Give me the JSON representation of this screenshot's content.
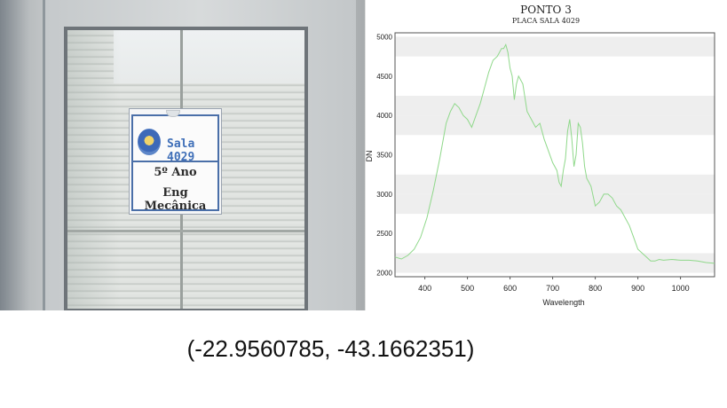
{
  "photo": {
    "sign_title": "Sala 4029",
    "sign_line1": "5º Ano",
    "sign_line2": "Eng Mecânica"
  },
  "chart_data": {
    "type": "line",
    "title": "PONTO 3",
    "subtitle": "PLACA SALA 4029",
    "xlabel": "Wavelength",
    "ylabel": "DN",
    "xlim": [
      330,
      1080
    ],
    "ylim": [
      1950,
      5050
    ],
    "xticks": [
      400,
      500,
      600,
      700,
      800,
      900,
      1000
    ],
    "yticks": [
      2000,
      2500,
      3000,
      3500,
      4000,
      4500,
      5000
    ],
    "grid": "horizontal bands",
    "colors": {
      "line": "#8fd88a",
      "band": "#eeeeee",
      "axis": "#555555"
    },
    "series": [
      {
        "x": [
          330,
          345,
          360,
          375,
          390,
          405,
          420,
          435,
          450,
          460,
          470,
          480,
          490,
          500,
          510,
          520,
          530,
          540,
          550,
          560,
          570,
          580,
          585,
          590,
          595,
          600,
          605,
          610,
          615,
          620,
          625,
          630,
          640,
          650,
          660,
          670,
          680,
          690,
          700,
          710,
          715,
          720,
          725,
          730,
          735,
          740,
          745,
          750,
          755,
          760,
          765,
          770,
          775,
          780,
          785,
          790,
          800,
          810,
          820,
          830,
          840,
          850,
          860,
          870,
          880,
          890,
          900,
          910,
          920,
          930,
          940,
          950,
          960,
          980,
          1000,
          1020,
          1040,
          1060,
          1080
        ],
        "y": [
          2200,
          2175,
          2220,
          2300,
          2450,
          2700,
          3050,
          3450,
          3900,
          4050,
          4150,
          4100,
          4000,
          3950,
          3850,
          4000,
          4150,
          4350,
          4550,
          4700,
          4750,
          4850,
          4850,
          4900,
          4800,
          4600,
          4500,
          4200,
          4400,
          4500,
          4450,
          4400,
          4050,
          3950,
          3850,
          3900,
          3700,
          3550,
          3400,
          3300,
          3150,
          3100,
          3300,
          3450,
          3800,
          3950,
          3700,
          3350,
          3500,
          3900,
          3850,
          3650,
          3350,
          3200,
          3150,
          3100,
          2850,
          2900,
          3000,
          3000,
          2950,
          2850,
          2800,
          2700,
          2600,
          2450,
          2300,
          2250,
          2200,
          2150,
          2150,
          2170,
          2160,
          2170,
          2160,
          2160,
          2150,
          2130,
          2120
        ]
      }
    ]
  },
  "coordinates": "(-22.9560785, -43.1662351)"
}
